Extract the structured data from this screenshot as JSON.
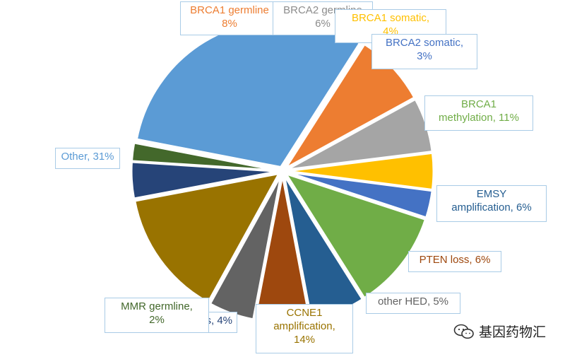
{
  "chart_data": {
    "type": "pie",
    "slices": [
      {
        "label": "BRCA1 germline",
        "value_text": "8%",
        "value": 8,
        "color": "#ed7d31"
      },
      {
        "label": "BRCA2 germline",
        "value_text": "6%",
        "value": 6,
        "color": "#a5a5a5"
      },
      {
        "label": "BRCA1 somatic,",
        "value_text": "4%",
        "value": 4,
        "color": "#ffc000"
      },
      {
        "label": "BRCA2 somatic,",
        "value_text": "3%",
        "value": 3,
        "color": "#4472c4"
      },
      {
        "label": "BRCA1",
        "label2": "methylation, 11%",
        "value": 11,
        "color": "#70ad47"
      },
      {
        "label": "EMSY",
        "label2": "amplification, 6%",
        "value": 6,
        "color": "#255e91"
      },
      {
        "label": "PTEN loss, 6%",
        "value": 6,
        "color": "#9e480e"
      },
      {
        "label": "other HED, 5%",
        "value": 5,
        "color": "#636363"
      },
      {
        "label": "CCNE1",
        "label2": "amplification,",
        "value_text": "14%",
        "value": 14,
        "color": "#997300"
      },
      {
        "label": "s, 4%",
        "value": 4,
        "color": "#264478"
      },
      {
        "label": "MMR germline,",
        "value_text": "2%",
        "value": 2,
        "color": "#43682b"
      },
      {
        "label": "Other, 31%",
        "value": 31,
        "color": "#5b9bd5"
      }
    ]
  },
  "watermark": {
    "text": "基因药物汇",
    "icon": "wechat-icon"
  }
}
